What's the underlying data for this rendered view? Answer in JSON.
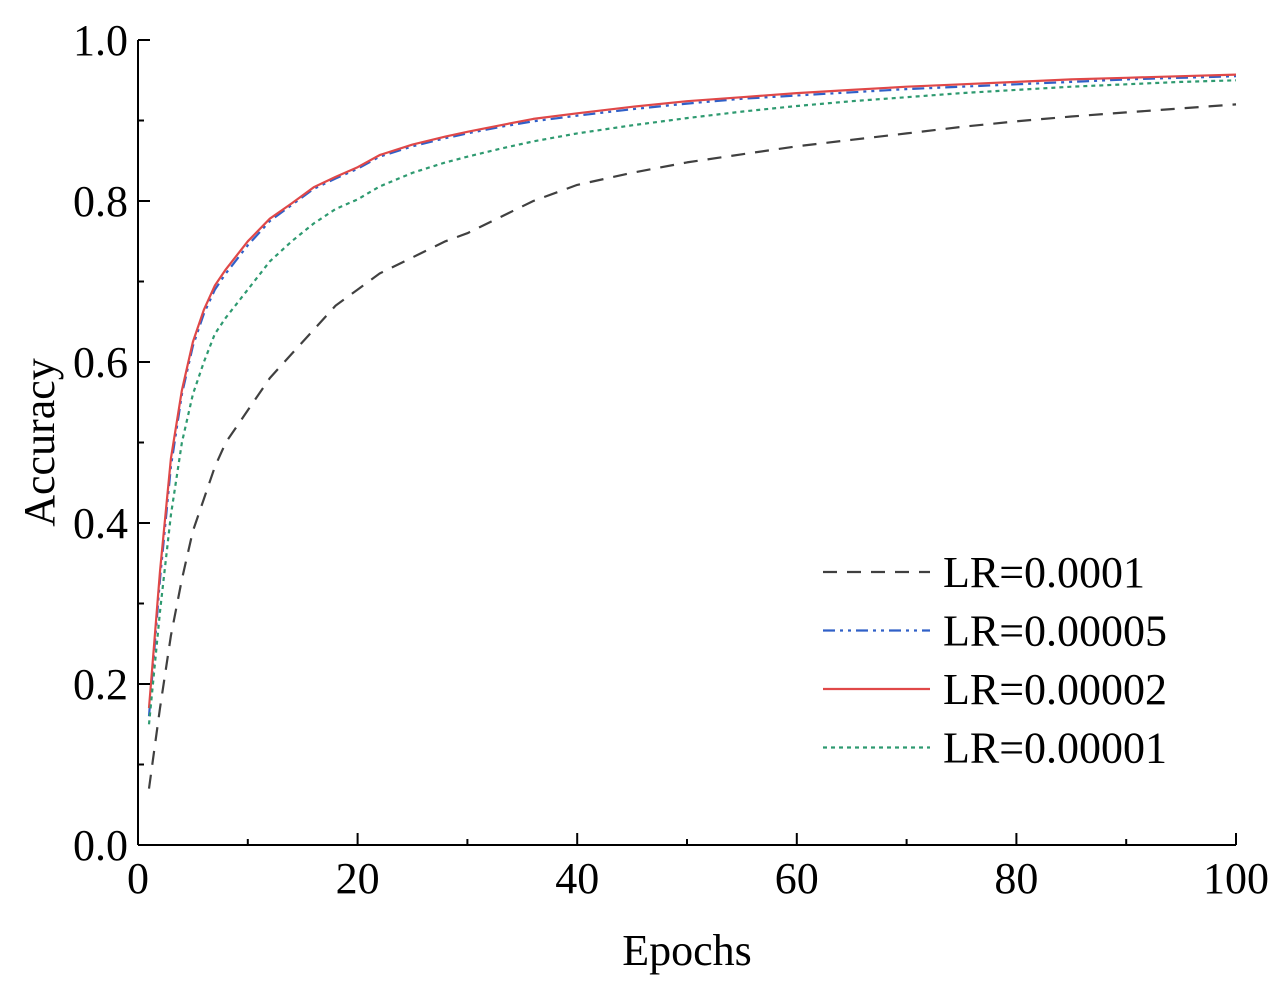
{
  "chart_data": {
    "type": "line",
    "title": "",
    "xlabel": "Epochs",
    "ylabel": "Accuracy",
    "xlim": [
      0,
      100
    ],
    "ylim": [
      0.0,
      1.0
    ],
    "xticks": [
      0,
      20,
      40,
      60,
      80,
      100
    ],
    "xtick_labels": [
      "0",
      "20",
      "40",
      "60",
      "80",
      "100"
    ],
    "yticks": [
      0.0,
      0.2,
      0.4,
      0.6,
      0.8,
      1.0
    ],
    "ytick_labels": [
      "0.0",
      "0.2",
      "0.4",
      "0.6",
      "0.8",
      "1.0"
    ],
    "grid": false,
    "legend_position": "lower-right",
    "x": [
      1,
      2,
      3,
      4,
      5,
      6,
      7,
      8,
      10,
      12,
      14,
      16,
      18,
      20,
      22,
      25,
      28,
      30,
      33,
      36,
      40,
      45,
      50,
      55,
      60,
      65,
      70,
      75,
      80,
      85,
      90,
      95,
      100
    ],
    "series": [
      {
        "name": "LR=0.0001",
        "color": "#404040",
        "dash": "dashed",
        "values": [
          0.07,
          0.17,
          0.26,
          0.33,
          0.39,
          0.43,
          0.47,
          0.5,
          0.54,
          0.58,
          0.61,
          0.64,
          0.67,
          0.69,
          0.71,
          0.73,
          0.75,
          0.76,
          0.78,
          0.8,
          0.82,
          0.835,
          0.848,
          0.858,
          0.868,
          0.876,
          0.884,
          0.892,
          0.899,
          0.905,
          0.91,
          0.915,
          0.92
        ]
      },
      {
        "name": "LR=0.00005",
        "color": "#3060c8",
        "dash": "dashdotdot",
        "values": [
          0.16,
          0.33,
          0.47,
          0.56,
          0.62,
          0.66,
          0.69,
          0.71,
          0.745,
          0.775,
          0.795,
          0.815,
          0.828,
          0.84,
          0.855,
          0.868,
          0.878,
          0.884,
          0.892,
          0.899,
          0.906,
          0.914,
          0.921,
          0.927,
          0.931,
          0.935,
          0.939,
          0.942,
          0.945,
          0.948,
          0.951,
          0.953,
          0.955
        ]
      },
      {
        "name": "LR=0.00002",
        "color": "#e04848",
        "dash": "solid",
        "values": [
          0.17,
          0.34,
          0.48,
          0.565,
          0.625,
          0.665,
          0.695,
          0.715,
          0.75,
          0.778,
          0.797,
          0.817,
          0.83,
          0.842,
          0.857,
          0.87,
          0.88,
          0.886,
          0.894,
          0.902,
          0.909,
          0.917,
          0.924,
          0.929,
          0.934,
          0.938,
          0.942,
          0.945,
          0.948,
          0.951,
          0.953,
          0.955,
          0.957
        ]
      },
      {
        "name": "LR=0.00001",
        "color": "#2e9a70",
        "dash": "dotted",
        "values": [
          0.15,
          0.29,
          0.41,
          0.5,
          0.56,
          0.6,
          0.635,
          0.655,
          0.69,
          0.725,
          0.75,
          0.772,
          0.79,
          0.802,
          0.818,
          0.835,
          0.848,
          0.855,
          0.865,
          0.874,
          0.884,
          0.894,
          0.903,
          0.911,
          0.918,
          0.924,
          0.929,
          0.934,
          0.938,
          0.942,
          0.945,
          0.948,
          0.95
        ]
      }
    ]
  }
}
